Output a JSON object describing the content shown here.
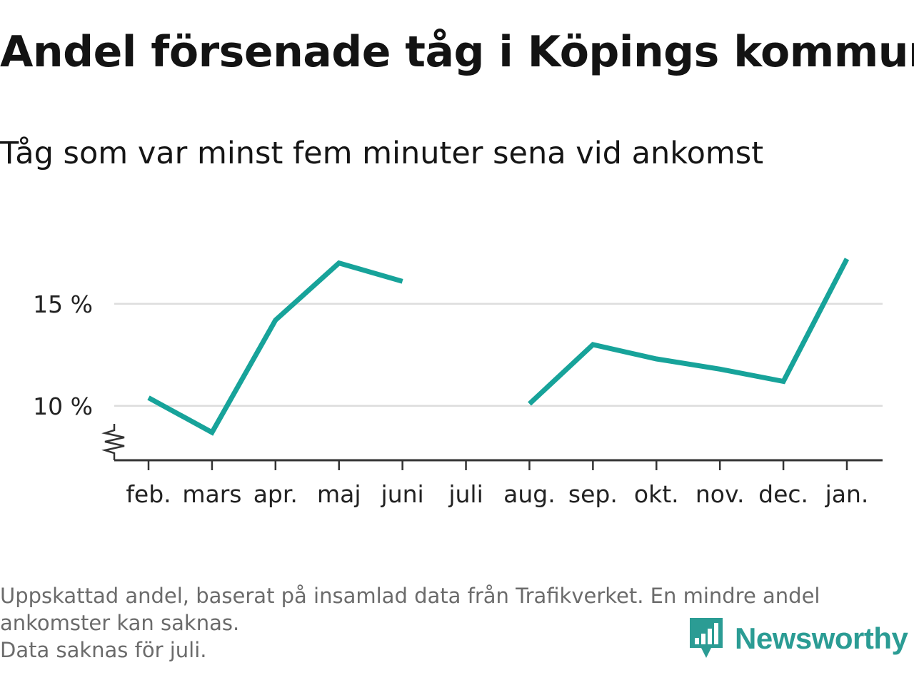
{
  "title": "Andel försenade tåg i Köpings kommun",
  "subtitle": "Tåg som var minst fem minuter sena vid ankomst",
  "footnote": {
    "line1": "Uppskattad andel, baserat på insamlad data från Trafikverket. En mindre andel",
    "line2": "ankomster kan saknas.",
    "line3": "Data saknas för juli."
  },
  "brand": {
    "name": "Newsworthy",
    "logo_icon": "newsworthy-bar-chart-badge-icon"
  },
  "colors": {
    "line": "#17a39a",
    "grid": "#dddddd",
    "axis": "#333333",
    "brand": "#2b9c94",
    "footnote": "#6b6b6b"
  },
  "chart_data": {
    "type": "line",
    "categories": [
      "feb.",
      "mars",
      "apr.",
      "maj",
      "juni",
      "juli",
      "aug.",
      "sep.",
      "okt.",
      "nov.",
      "dec.",
      "jan."
    ],
    "series": [
      {
        "values": [
          10.4,
          8.7,
          14.2,
          17.0,
          16.1,
          null,
          10.1,
          13.0,
          12.3,
          11.8,
          11.2,
          17.2
        ]
      }
    ],
    "y_ticks": [
      {
        "value": 10,
        "label": "10 %"
      },
      {
        "value": 15,
        "label": "15 %"
      }
    ],
    "ylim": [
      7.4,
      18.3
    ],
    "axis_break": true,
    "grid": true,
    "xlabel": "",
    "ylabel": ""
  }
}
